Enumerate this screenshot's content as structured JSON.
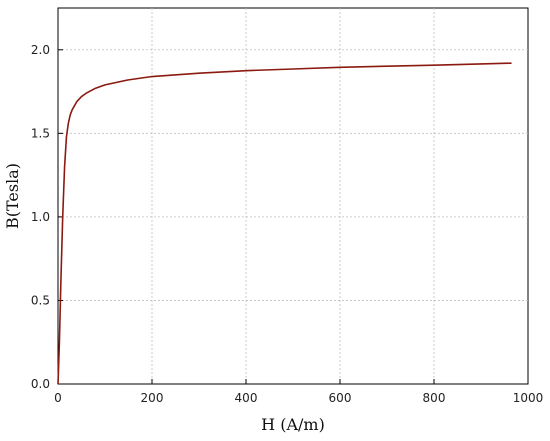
{
  "chart_data": {
    "type": "line",
    "title": "",
    "xlabel": "H (A/m)",
    "ylabel": "B(Tesla)",
    "xlim": [
      0,
      1000
    ],
    "ylim": [
      0,
      2.25
    ],
    "grid": true,
    "x_ticks": [
      0,
      200,
      400,
      600,
      800,
      1000
    ],
    "y_ticks": [
      0.0,
      0.5,
      1.0,
      1.5,
      2.0
    ],
    "x_tick_labels": [
      "0",
      "200",
      "400",
      "600",
      "800",
      "1000"
    ],
    "y_tick_labels": [
      "0.0",
      "0.5",
      "1.0",
      "1.5",
      "2.0"
    ],
    "series": [
      {
        "color": "#8b1a10",
        "x": [
          0,
          3,
          6,
          10,
          14,
          18,
          22,
          26,
          30,
          40,
          50,
          60,
          80,
          100,
          150,
          200,
          300,
          400,
          500,
          600,
          700,
          800,
          900,
          965
        ],
        "y": [
          0.0,
          0.25,
          0.6,
          1.0,
          1.3,
          1.48,
          1.56,
          1.61,
          1.64,
          1.69,
          1.72,
          1.74,
          1.77,
          1.79,
          1.82,
          1.84,
          1.86,
          1.875,
          1.885,
          1.895,
          1.902,
          1.908,
          1.915,
          1.92
        ]
      }
    ]
  }
}
